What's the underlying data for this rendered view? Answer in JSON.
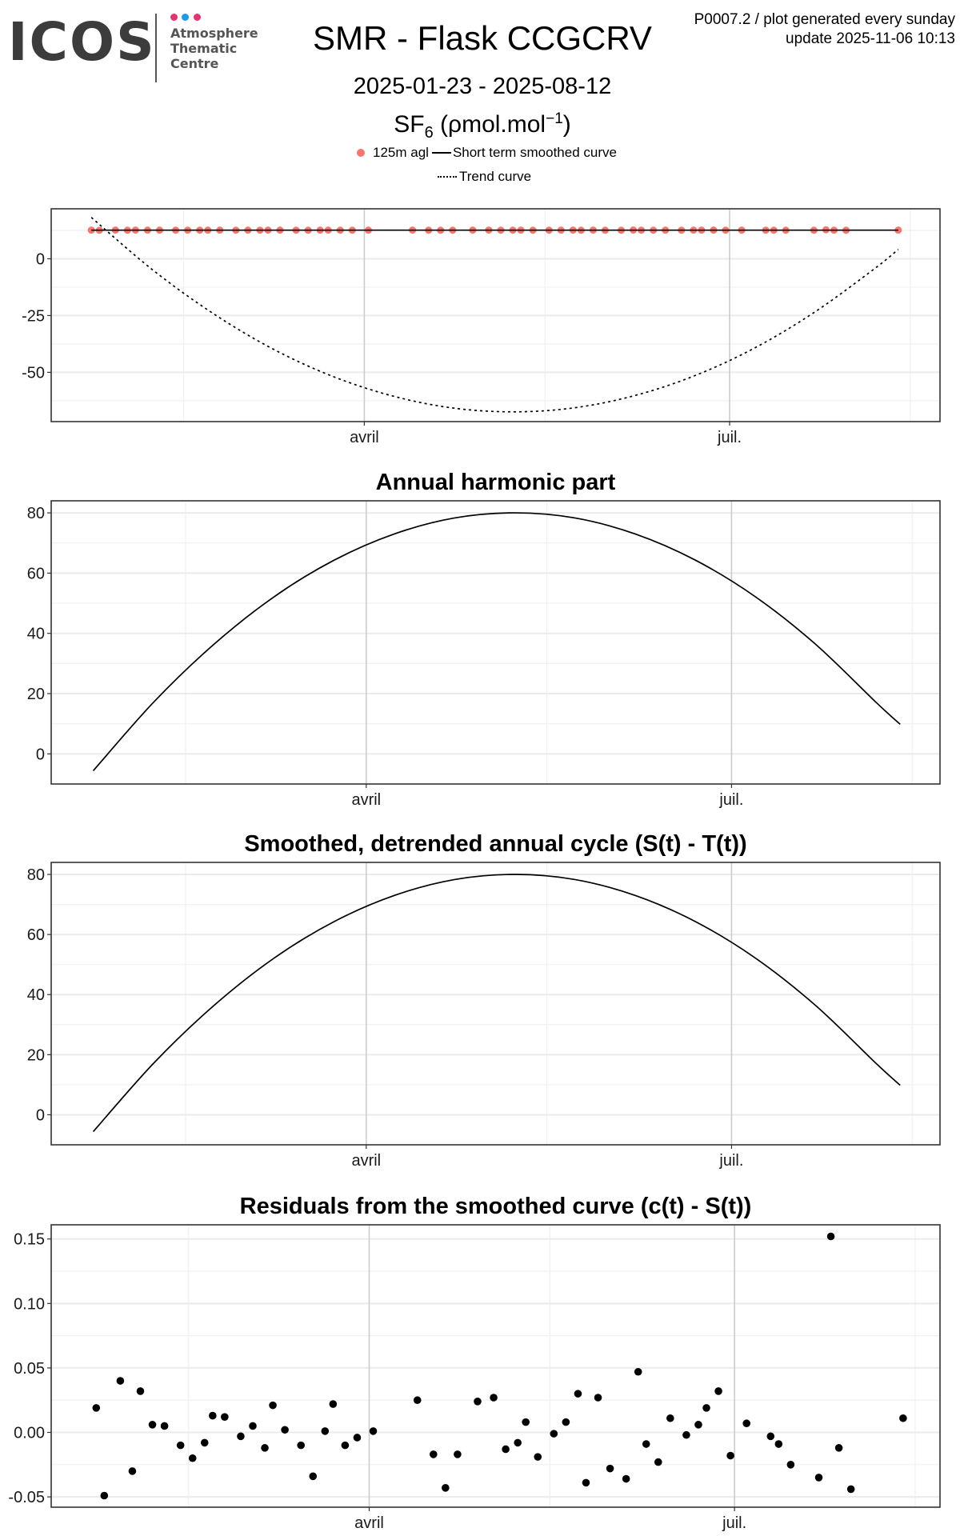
{
  "header": {
    "logo": "ICOS",
    "logo_subtitle": [
      "Atmosphere",
      "Thematic",
      "Centre"
    ],
    "logo_dot_colors": [
      "#e6336f",
      "#1e9be6",
      "#e6336f"
    ],
    "title": "SMR - Flask CCGCRV",
    "date_range": "2025-01-23 - 2025-08-12",
    "species_main": "SF",
    "species_sub": "6",
    "species_unit": " (ρmol.mol",
    "species_sup": "−1",
    "species_close": ")",
    "plot_info": "P0007.2 / plot generated every sunday",
    "update": "update  2025-11-06 10:13"
  },
  "legend": {
    "observed": "125m agl",
    "smooth": "Short term smoothed curve",
    "trend": "Trend curve",
    "observed_color": "#F8766D"
  },
  "chart_data": [
    {
      "type": "line",
      "title": "",
      "x_ticks": [
        {
          "date": "2025-04-01",
          "label": "avril"
        },
        {
          "date": "2025-07-01",
          "label": "juil."
        }
      ],
      "ylim": [
        -71.7,
        22
      ],
      "y_ticks": [
        {
          "value": 0,
          "label": "0"
        },
        {
          "value": -25,
          "label": "-25"
        },
        {
          "value": -50,
          "label": "-50"
        }
      ],
      "grid": true,
      "series": [
        {
          "name": "125m agl",
          "kind": "points",
          "color": "#F8766D",
          "source": "observations"
        },
        {
          "name": "Short term smoothed curve",
          "kind": "solid",
          "points": [
            [
              "2025-01-23",
              12.6
            ],
            [
              "2025-08-12",
              12.6
            ]
          ]
        },
        {
          "name": "Trend curve",
          "kind": "dashed",
          "points": [
            [
              "2025-01-23",
              18.2
            ],
            [
              "2025-02-07",
              -4.5
            ],
            [
              "2025-02-22",
              -23.7
            ],
            [
              "2025-03-09",
              -39.5
            ],
            [
              "2025-03-24",
              -51.7
            ],
            [
              "2025-04-08",
              -60.4
            ],
            [
              "2025-04-23",
              -65.7
            ],
            [
              "2025-05-08",
              -67.4
            ],
            [
              "2025-05-23",
              -65.7
            ],
            [
              "2025-06-07",
              -60.4
            ],
            [
              "2025-06-22",
              -51.7
            ],
            [
              "2025-07-07",
              -39.5
            ],
            [
              "2025-07-22",
              -23.7
            ],
            [
              "2025-08-06",
              -4.5
            ],
            [
              "2025-08-12",
              4.1
            ]
          ]
        }
      ]
    },
    {
      "type": "line",
      "title": "Annual harmonic part",
      "x_ticks": [
        {
          "date": "2025-04-01",
          "label": "avril"
        },
        {
          "date": "2025-07-01",
          "label": "juil."
        }
      ],
      "ylim": [
        -10,
        84
      ],
      "y_ticks": [
        {
          "value": 0,
          "label": "0"
        },
        {
          "value": 20,
          "label": "20"
        },
        {
          "value": 40,
          "label": "40"
        },
        {
          "value": 60,
          "label": "60"
        },
        {
          "value": 80,
          "label": "80"
        }
      ],
      "grid": true,
      "series": [
        {
          "kind": "solid",
          "points": [
            [
              "2025-01-23",
              -5.6
            ],
            [
              "2025-02-07",
              17.1
            ],
            [
              "2025-02-22",
              36.3
            ],
            [
              "2025-03-09",
              52.1
            ],
            [
              "2025-03-24",
              64.3
            ],
            [
              "2025-04-08",
              73.0
            ],
            [
              "2025-04-23",
              78.3
            ],
            [
              "2025-05-08",
              80.0
            ],
            [
              "2025-05-23",
              78.3
            ],
            [
              "2025-06-07",
              73.0
            ],
            [
              "2025-06-22",
              64.3
            ],
            [
              "2025-07-07",
              52.1
            ],
            [
              "2025-07-22",
              36.3
            ],
            [
              "2025-08-06",
              17.1
            ],
            [
              "2025-08-12",
              9.8
            ]
          ]
        }
      ]
    },
    {
      "type": "line",
      "title": "Smoothed, detrended annual cycle (S(t) - T(t))",
      "x_ticks": [
        {
          "date": "2025-04-01",
          "label": "avril"
        },
        {
          "date": "2025-07-01",
          "label": "juil."
        }
      ],
      "ylim": [
        -10,
        84
      ],
      "y_ticks": [
        {
          "value": 0,
          "label": "0"
        },
        {
          "value": 20,
          "label": "20"
        },
        {
          "value": 40,
          "label": "40"
        },
        {
          "value": 60,
          "label": "60"
        },
        {
          "value": 80,
          "label": "80"
        }
      ],
      "grid": true,
      "series": [
        {
          "kind": "solid",
          "points": [
            [
              "2025-01-23",
              -5.6
            ],
            [
              "2025-02-07",
              17.1
            ],
            [
              "2025-02-22",
              36.3
            ],
            [
              "2025-03-09",
              52.1
            ],
            [
              "2025-03-24",
              64.3
            ],
            [
              "2025-04-08",
              73.0
            ],
            [
              "2025-04-23",
              78.3
            ],
            [
              "2025-05-08",
              80.0
            ],
            [
              "2025-05-23",
              78.3
            ],
            [
              "2025-06-07",
              73.0
            ],
            [
              "2025-06-22",
              64.3
            ],
            [
              "2025-07-07",
              52.1
            ],
            [
              "2025-07-22",
              36.3
            ],
            [
              "2025-08-06",
              17.1
            ],
            [
              "2025-08-12",
              9.8
            ]
          ]
        }
      ]
    },
    {
      "type": "scatter",
      "title": "Residuals from the smoothed curve (c(t) - S(t))",
      "x_ticks": [
        {
          "date": "2025-04-01",
          "label": "avril"
        },
        {
          "date": "2025-07-01",
          "label": "juil."
        }
      ],
      "ylim": [
        -0.058,
        0.161
      ],
      "y_ticks": [
        {
          "value": -0.05,
          "label": "-0.05"
        },
        {
          "value": 0,
          "label": "0.00"
        },
        {
          "value": 0.05,
          "label": "0.05"
        },
        {
          "value": 0.1,
          "label": "0.10"
        },
        {
          "value": 0.15,
          "label": "0.15"
        }
      ],
      "grid": true,
      "series": [
        {
          "kind": "points",
          "color": "#000000",
          "source": "residuals"
        }
      ]
    }
  ],
  "observations": {
    "dates": [
      "2025-01-23",
      "2025-01-25",
      "2025-01-29",
      "2025-02-01",
      "2025-02-03",
      "2025-02-06",
      "2025-02-09",
      "2025-02-13",
      "2025-02-16",
      "2025-02-19",
      "2025-02-21",
      "2025-02-24",
      "2025-02-28",
      "2025-03-03",
      "2025-03-06",
      "2025-03-08",
      "2025-03-11",
      "2025-03-15",
      "2025-03-18",
      "2025-03-21",
      "2025-03-23",
      "2025-03-26",
      "2025-03-29",
      "2025-04-02",
      "2025-04-13",
      "2025-04-17",
      "2025-04-20",
      "2025-04-23",
      "2025-04-28",
      "2025-05-02",
      "2025-05-05",
      "2025-05-08",
      "2025-05-10",
      "2025-05-13",
      "2025-05-17",
      "2025-05-20",
      "2025-05-23",
      "2025-05-25",
      "2025-05-28",
      "2025-05-31",
      "2025-06-04",
      "2025-06-07",
      "2025-06-09",
      "2025-06-12",
      "2025-06-15",
      "2025-06-19",
      "2025-06-22",
      "2025-06-24",
      "2025-06-27",
      "2025-06-30",
      "2025-07-04",
      "2025-07-10",
      "2025-07-12",
      "2025-07-15",
      "2025-07-22",
      "2025-07-25",
      "2025-07-27",
      "2025-07-30",
      "2025-08-12"
    ],
    "values": [
      12.619,
      12.551,
      12.64,
      12.57,
      12.632,
      12.606,
      12.605,
      12.59,
      12.58,
      12.592,
      12.613,
      12.612,
      12.597,
      12.605,
      12.588,
      12.621,
      12.602,
      12.59,
      12.566,
      12.601,
      12.622,
      12.59,
      12.596,
      12.601,
      12.625,
      12.583,
      12.557,
      12.583,
      12.624,
      12.627,
      12.587,
      12.592,
      12.608,
      12.581,
      12.599,
      12.608,
      12.63,
      12.561,
      12.627,
      12.572,
      12.564,
      12.647,
      12.591,
      12.577,
      12.611,
      12.598,
      12.606,
      12.619,
      12.632,
      12.582,
      12.607,
      12.597,
      12.591,
      12.575,
      12.565,
      12.752,
      12.588,
      12.556,
      12.611
    ],
    "residuals": [
      0.019,
      -0.049,
      0.04,
      -0.03,
      0.032,
      0.006,
      0.005,
      -0.01,
      -0.02,
      -0.008,
      0.013,
      0.012,
      -0.003,
      0.005,
      -0.012,
      0.021,
      0.002,
      -0.01,
      -0.034,
      0.001,
      0.022,
      -0.01,
      -0.004,
      0.001,
      0.025,
      -0.017,
      -0.043,
      -0.017,
      0.024,
      0.027,
      -0.013,
      -0.008,
      0.008,
      -0.019,
      -0.001,
      0.008,
      0.03,
      -0.039,
      0.027,
      -0.028,
      -0.036,
      0.047,
      -0.009,
      -0.023,
      0.011,
      -0.002,
      0.006,
      0.019,
      0.032,
      -0.018,
      0.007,
      -0.003,
      -0.009,
      -0.025,
      -0.035,
      0.152,
      -0.012,
      -0.044,
      0.011
    ]
  }
}
